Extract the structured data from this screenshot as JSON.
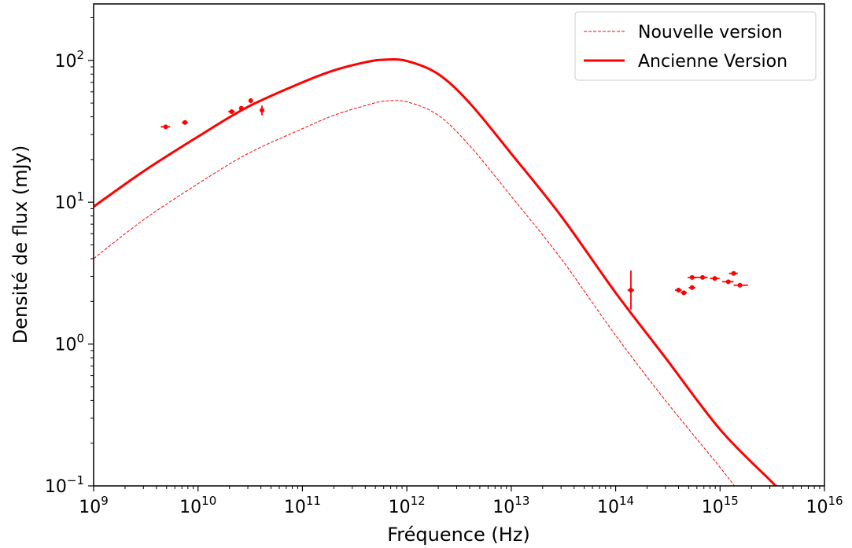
{
  "chart_data": {
    "type": "line",
    "xlabel": "Fréquence (Hz)",
    "ylabel": "Densité de flux (mJy)",
    "x_scale": "log",
    "y_scale": "log",
    "xlim": [
      1000000000.0,
      1e+16
    ],
    "ylim": [
      0.1,
      250
    ],
    "grid": false,
    "legend_position": "top-right",
    "x_ticks": [
      {
        "value": 1000000000.0,
        "base": "10",
        "exp": "9"
      },
      {
        "value": 10000000000.0,
        "base": "10",
        "exp": "10"
      },
      {
        "value": 100000000000.0,
        "base": "10",
        "exp": "11"
      },
      {
        "value": 1000000000000.0,
        "base": "10",
        "exp": "12"
      },
      {
        "value": 10000000000000.0,
        "base": "10",
        "exp": "13"
      },
      {
        "value": 100000000000000.0,
        "base": "10",
        "exp": "14"
      },
      {
        "value": 1000000000000000.0,
        "base": "10",
        "exp": "15"
      },
      {
        "value": 1e+16,
        "base": "10",
        "exp": "16"
      }
    ],
    "y_ticks": [
      {
        "value": 0.1,
        "base": "10",
        "exp": "−1"
      },
      {
        "value": 1,
        "base": "10",
        "exp": "0"
      },
      {
        "value": 10,
        "base": "10",
        "exp": "1"
      },
      {
        "value": 100,
        "base": "10",
        "exp": "2"
      }
    ],
    "series": [
      {
        "name": "Nouvelle version",
        "style": "dashed",
        "color": "#ff0000",
        "x": [
          1000000000.0,
          3000000000.0,
          10000000000.0,
          30000000000.0,
          100000000000.0,
          200000000000.0,
          400000000000.0,
          600000000000.0,
          1000000000000.0,
          2000000000000.0,
          4000000000000.0,
          10000000000000.0,
          30000000000000.0,
          100000000000000.0,
          300000000000000.0,
          1000000000000000.0,
          1400000000000000.0
        ],
        "y": [
          4.0,
          7.5,
          13.5,
          22,
          33,
          41,
          48,
          51.5,
          51,
          41,
          25,
          11,
          4.0,
          1.15,
          0.4,
          0.135,
          0.098
        ]
      },
      {
        "name": "Ancienne Version",
        "style": "solid",
        "color": "#ff0000",
        "x": [
          1000000000.0,
          3000000000.0,
          10000000000.0,
          30000000000.0,
          100000000000.0,
          200000000000.0,
          400000000000.0,
          600000000000.0,
          1000000000000.0,
          2000000000000.0,
          4000000000000.0,
          10000000000000.0,
          30000000000000.0,
          100000000000000.0,
          300000000000000.0,
          1000000000000000.0,
          3000000000000000.0,
          3700000000000000.0
        ],
        "y": [
          9.3,
          16.5,
          29,
          47,
          70,
          85,
          97,
          101,
          99,
          80,
          50,
          22,
          8,
          2.3,
          0.8,
          0.25,
          0.11,
          0.095
        ]
      }
    ],
    "observations": {
      "color": "#ff0000",
      "points": [
        {
          "x": 4900000000.0,
          "y": 34,
          "xerr": [
            4400000000.0,
            5400000000.0
          ],
          "yerr": [
            33,
            35
          ]
        },
        {
          "x": 7500000000.0,
          "y": 36.5,
          "xerr": [
            7000000000.0,
            8000000000.0
          ],
          "yerr": [
            35.5,
            37.5
          ]
        },
        {
          "x": 21000000000.0,
          "y": 43.5,
          "xerr": [
            19500000000.0,
            22500000000.0
          ],
          "yerr": [
            42,
            45
          ]
        },
        {
          "x": 26000000000.0,
          "y": 46,
          "xerr": [
            25000000000.0,
            27000000000.0
          ],
          "yerr": [
            44.5,
            47.5
          ]
        },
        {
          "x": 32000000000.0,
          "y": 52,
          "xerr": [
            30500000000.0,
            33500000000.0
          ],
          "yerr": [
            50,
            54
          ]
        },
        {
          "x": 41000000000.0,
          "y": 44.5,
          "xerr": [
            40000000000.0,
            42000000000.0
          ],
          "yerr": [
            41,
            48
          ]
        },
        {
          "x": 140000000000000.0,
          "y": 2.4,
          "xerr": [
            130000000000000.0,
            150000000000000.0
          ],
          "yerr": [
            1.75,
            3.3
          ]
        },
        {
          "x": 400000000000000.0,
          "y": 2.4,
          "xerr": [
            370000000000000.0,
            430000000000000.0
          ],
          "yerr": [
            2.32,
            2.48
          ]
        },
        {
          "x": 450000000000000.0,
          "y": 2.3,
          "xerr": [
            420000000000000.0,
            480000000000000.0
          ],
          "yerr": [
            2.22,
            2.38
          ]
        },
        {
          "x": 540000000000000.0,
          "y": 2.5,
          "xerr": [
            500000000000000.0,
            580000000000000.0
          ],
          "yerr": [
            2.42,
            2.58
          ]
        },
        {
          "x": 540000000000000.0,
          "y": 2.95,
          "xerr": [
            490000000000000.0,
            610000000000000.0
          ],
          "yerr": [
            2.87,
            3.03
          ]
        },
        {
          "x": 680000000000000.0,
          "y": 2.95,
          "xerr": [
            610000000000000.0,
            760000000000000.0
          ],
          "yerr": [
            2.87,
            3.03
          ]
        },
        {
          "x": 890000000000000.0,
          "y": 2.9,
          "xerr": [
            800000000000000.0,
            990000000000000.0
          ],
          "yerr": [
            2.82,
            2.98
          ]
        },
        {
          "x": 1200000000000000.0,
          "y": 2.75,
          "xerr": [
            1050000000000000.0,
            1350000000000000.0
          ],
          "yerr": [
            2.67,
            2.83
          ]
        },
        {
          "x": 1350000000000000.0,
          "y": 3.15,
          "xerr": [
            1220000000000000.0,
            1480000000000000.0
          ],
          "yerr": [
            3.07,
            3.23
          ]
        },
        {
          "x": 1550000000000000.0,
          "y": 2.6,
          "xerr": [
            1350000000000000.0,
            1850000000000000.0
          ],
          "yerr": [
            2.52,
            2.68
          ]
        }
      ]
    }
  }
}
